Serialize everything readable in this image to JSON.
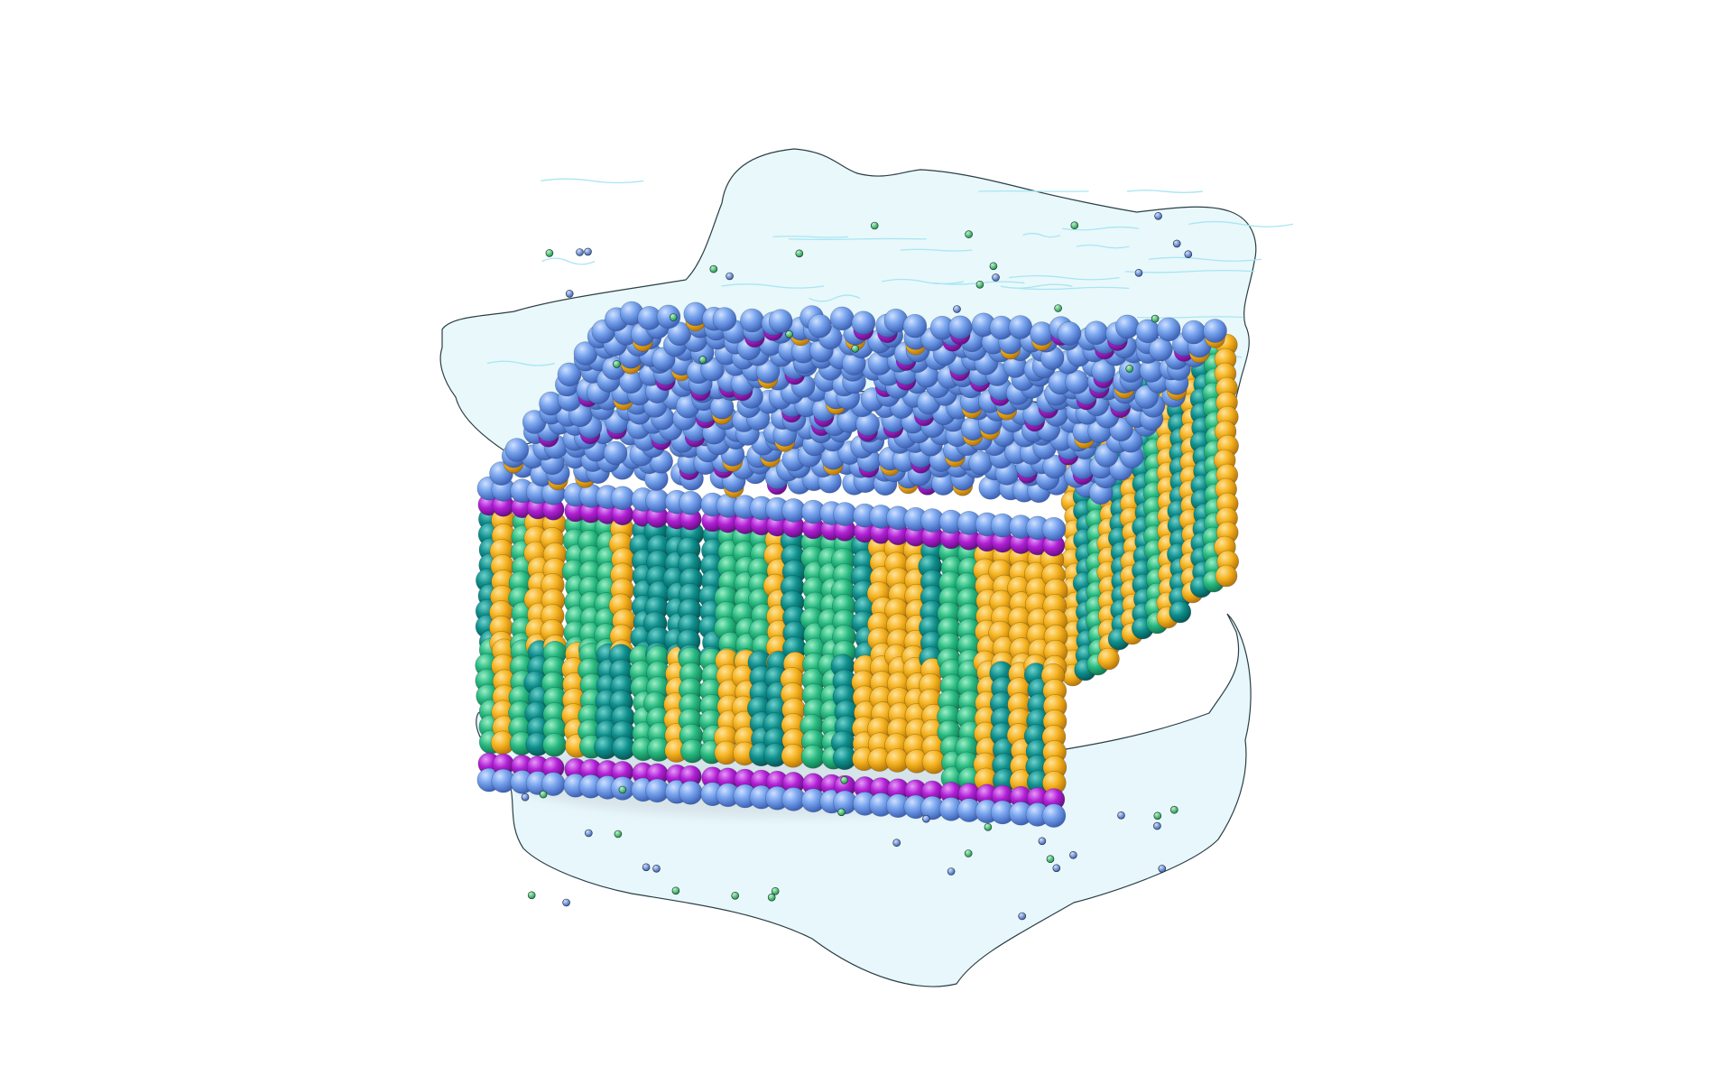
{
  "image": {
    "subject": "membrane-bilayer-simulation-box",
    "background": "#ffffff"
  },
  "colors": {
    "water_fill": "#e3f6fa",
    "water_edge": "#2b3f46",
    "water_ripple": "#a8e6f2",
    "head_choline": "#7aa6ef",
    "head_phosphate": "#b21fd6",
    "tail_yellow": "#f5b21e",
    "tail_teal": "#0f8f8c",
    "tail_green": "#27b980",
    "ion_green": "#3dc46a",
    "ion_blue": "#6e97e0",
    "shadow": "#c9d4da"
  },
  "layers": [
    {
      "name": "top-solvent-layer"
    },
    {
      "name": "lipid-bilayer"
    },
    {
      "name": "bottom-solvent-layer"
    }
  ]
}
